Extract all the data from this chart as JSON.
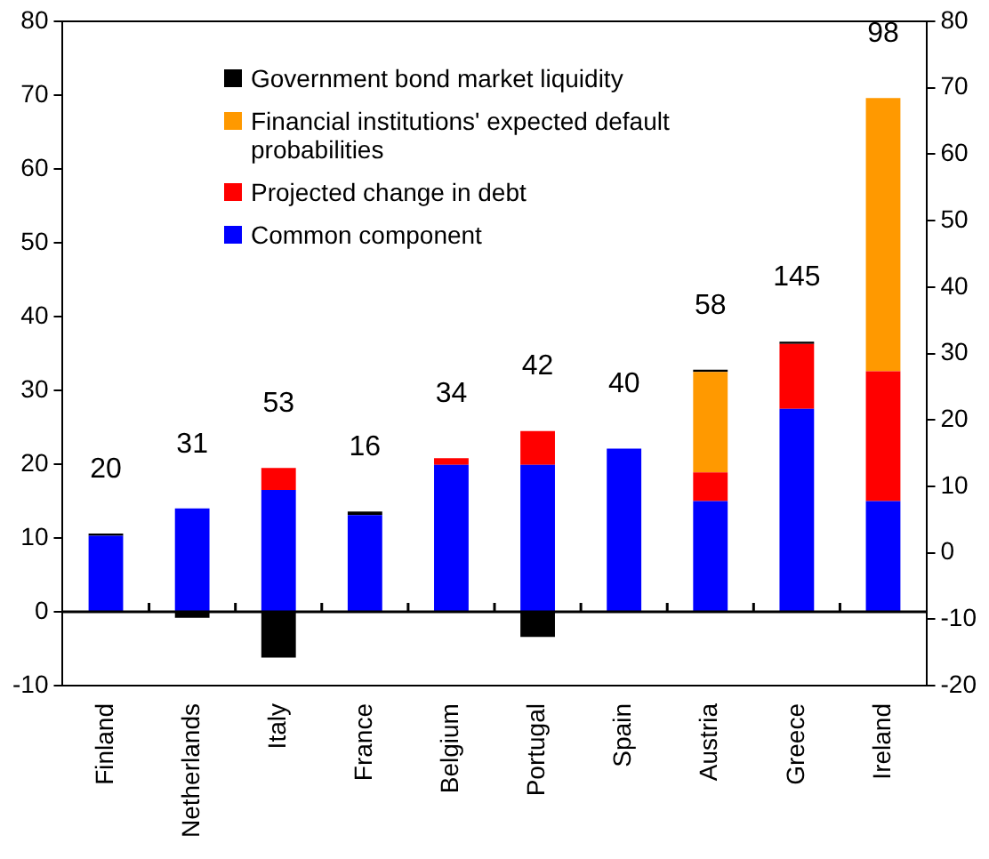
{
  "chart_data": {
    "type": "bar",
    "stacked": true,
    "categories": [
      "Finland",
      "Netherlands",
      "Italy",
      "France",
      "Belgium",
      "Portugal",
      "Spain",
      "Austria",
      "Greece",
      "Ireland"
    ],
    "series": [
      {
        "name": "Common component",
        "color": "#0000ff",
        "values": [
          10.3,
          14.0,
          16.5,
          13.1,
          19.9,
          19.9,
          22.1,
          15.0,
          27.5,
          15.0
        ]
      },
      {
        "name": "Projected change in debt",
        "color": "#ff0000",
        "values": [
          null,
          null,
          3.0,
          null,
          0.9,
          4.6,
          null,
          3.9,
          8.8,
          17.6
        ]
      },
      {
        "name": "Financial institutions' expected default probabilities",
        "color": "#ff9900",
        "values": [
          null,
          null,
          null,
          null,
          null,
          null,
          null,
          13.6,
          null,
          37.0
        ]
      },
      {
        "name": "Government bond market liquidity",
        "color": "#000000",
        "values": [
          0.3,
          -0.8,
          -6.2,
          0.5,
          null,
          -3.4,
          null,
          0.3,
          0.3,
          null
        ]
      }
    ],
    "ylim": [
      -10,
      80
    ],
    "yticks": [
      -10,
      0,
      10,
      20,
      30,
      40,
      50,
      60,
      70,
      80
    ],
    "y2lim": [
      -20,
      80
    ],
    "y2ticks": [
      -20,
      -10,
      0,
      10,
      20,
      30,
      40,
      50,
      60,
      70,
      80
    ],
    "ref_lines": [
      {
        "axis": "y",
        "value": 0,
        "color": "#000000"
      }
    ],
    "annotations": [
      "20",
      "31",
      "53",
      "16",
      "34",
      "42",
      "40",
      "58",
      "145",
      "98"
    ],
    "grid": false,
    "legend": "top left"
  }
}
